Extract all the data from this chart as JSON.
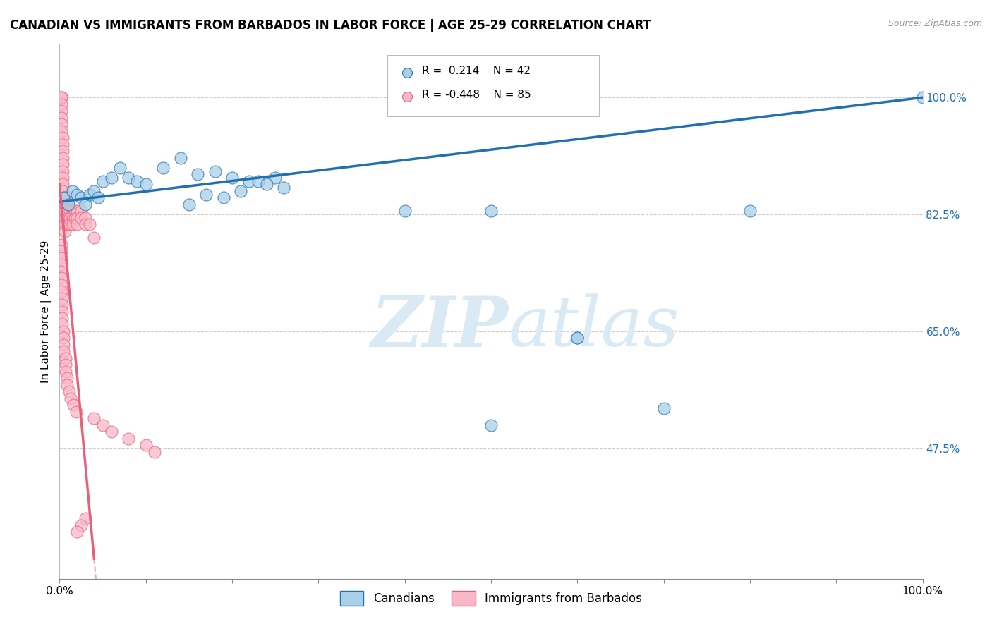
{
  "title": "CANADIAN VS IMMIGRANTS FROM BARBADOS IN LABOR FORCE | AGE 25-29 CORRELATION CHART",
  "source_text": "Source: ZipAtlas.com",
  "ylabel": "In Labor Force | Age 25-29",
  "xlim": [
    0.0,
    1.0
  ],
  "ylim": [
    0.28,
    1.08
  ],
  "yticks": [
    0.475,
    0.65,
    0.825,
    1.0
  ],
  "ytick_labels": [
    "47.5%",
    "65.0%",
    "82.5%",
    "100.0%"
  ],
  "xticks": [
    0.0,
    0.1,
    0.2,
    0.3,
    0.4,
    0.5,
    0.6,
    0.7,
    0.8,
    0.9,
    1.0
  ],
  "xtick_labels": [
    "0.0%",
    "",
    "",
    "",
    "",
    "",
    "",
    "",
    "",
    "",
    "100.0%"
  ],
  "legend_label1": "Canadians",
  "legend_label2": "Immigrants from Barbados",
  "r1": 0.214,
  "n1": 42,
  "r2": -0.448,
  "n2": 85,
  "blue_color": "#a8d0e8",
  "pink_color": "#f9b8c8",
  "trend_blue": "#2070b4",
  "trend_pink": "#e8607a",
  "watermark_color": "#daeaf5",
  "blue_x": [
    0.005,
    0.01,
    0.015,
    0.02,
    0.025,
    0.03,
    0.035,
    0.04,
    0.045,
    0.05,
    0.06,
    0.07,
    0.08,
    0.09,
    0.1,
    0.12,
    0.14,
    0.16,
    0.18,
    0.2,
    0.22,
    0.25,
    0.15,
    0.17,
    0.19,
    0.21,
    0.23,
    0.24,
    0.26,
    0.4,
    0.5,
    0.6,
    0.7,
    0.8,
    0.5,
    0.6,
    1.0
  ],
  "blue_y": [
    0.85,
    0.84,
    0.86,
    0.855,
    0.85,
    0.84,
    0.855,
    0.86,
    0.85,
    0.875,
    0.88,
    0.895,
    0.88,
    0.875,
    0.87,
    0.895,
    0.91,
    0.885,
    0.89,
    0.88,
    0.875,
    0.88,
    0.84,
    0.855,
    0.85,
    0.86,
    0.875,
    0.87,
    0.865,
    0.83,
    0.83,
    0.64,
    0.535,
    0.83,
    0.51,
    0.64,
    1.0
  ],
  "pink_x": [
    0.002,
    0.002,
    0.002,
    0.002,
    0.002,
    0.002,
    0.002,
    0.002,
    0.004,
    0.004,
    0.004,
    0.004,
    0.004,
    0.004,
    0.004,
    0.004,
    0.004,
    0.006,
    0.006,
    0.006,
    0.006,
    0.006,
    0.006,
    0.008,
    0.008,
    0.008,
    0.008,
    0.008,
    0.01,
    0.01,
    0.01,
    0.01,
    0.012,
    0.012,
    0.012,
    0.015,
    0.015,
    0.015,
    0.018,
    0.018,
    0.02,
    0.02,
    0.02,
    0.025,
    0.025,
    0.03,
    0.03,
    0.035,
    0.04,
    0.002,
    0.002,
    0.002,
    0.002,
    0.002,
    0.002,
    0.002,
    0.002,
    0.003,
    0.003,
    0.003,
    0.003,
    0.003,
    0.005,
    0.005,
    0.005,
    0.005,
    0.007,
    0.007,
    0.007,
    0.009,
    0.009,
    0.011,
    0.013,
    0.016,
    0.019,
    0.04,
    0.05,
    0.06,
    0.08,
    0.1,
    0.11,
    0.03,
    0.025,
    0.02
  ],
  "pink_y": [
    1.0,
    1.0,
    1.0,
    0.99,
    0.98,
    0.97,
    0.96,
    0.95,
    0.94,
    0.93,
    0.92,
    0.91,
    0.9,
    0.89,
    0.88,
    0.87,
    0.86,
    0.85,
    0.84,
    0.83,
    0.82,
    0.81,
    0.8,
    0.85,
    0.84,
    0.83,
    0.82,
    0.81,
    0.84,
    0.83,
    0.82,
    0.81,
    0.83,
    0.82,
    0.81,
    0.83,
    0.82,
    0.81,
    0.83,
    0.82,
    0.83,
    0.82,
    0.81,
    0.83,
    0.82,
    0.82,
    0.81,
    0.81,
    0.79,
    0.78,
    0.77,
    0.76,
    0.75,
    0.74,
    0.73,
    0.72,
    0.71,
    0.7,
    0.69,
    0.68,
    0.67,
    0.66,
    0.65,
    0.64,
    0.63,
    0.62,
    0.61,
    0.6,
    0.59,
    0.58,
    0.57,
    0.56,
    0.55,
    0.54,
    0.53,
    0.52,
    0.51,
    0.5,
    0.49,
    0.48,
    0.47,
    0.37,
    0.36,
    0.35
  ]
}
